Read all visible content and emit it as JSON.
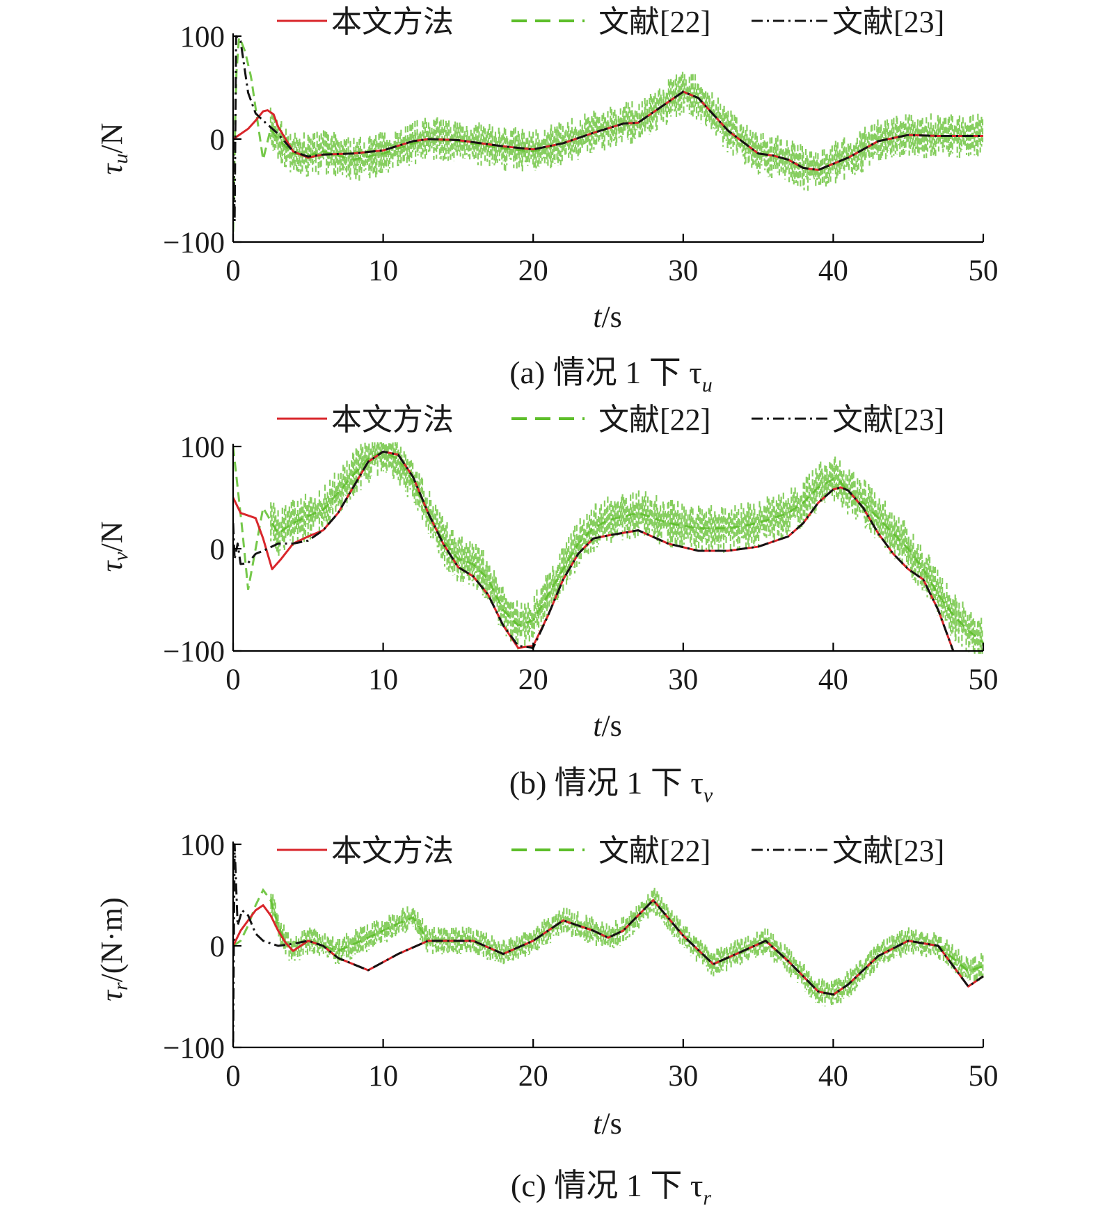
{
  "colors": {
    "proposed": "#d9262b",
    "ref22": "#5dbe2a",
    "ref23": "#141414",
    "axis": "#000000"
  },
  "chart_data": [
    {
      "type": "line",
      "title": "(a) 情况 1 下 τu",
      "caption_text": "(a) 情况 1 下 τ",
      "caption_sub": "u",
      "xlabel_var": "t",
      "xlabel_unit": "/s",
      "ylabel_var": "τ",
      "ylabel_sub": "u",
      "ylabel_unit": "/N",
      "xlim": [
        0,
        50
      ],
      "ylim": [
        -100,
        100
      ],
      "xticks": [
        0,
        10,
        20,
        30,
        40,
        50
      ],
      "yticks": [
        -100,
        0,
        100
      ],
      "xtick_labels": [
        "0",
        "10",
        "20",
        "30",
        "40",
        "50"
      ],
      "ytick_labels": [
        "−100",
        "0",
        "100"
      ],
      "legend": [
        "本文方法",
        "文献[22]",
        "文献[23]"
      ],
      "series": [
        {
          "name": "本文方法",
          "x": [
            0,
            0.5,
            1,
            1.5,
            2,
            2.3,
            2.7,
            3,
            4,
            5,
            6,
            8,
            10,
            12,
            13,
            15,
            18,
            20,
            22,
            24,
            26,
            27,
            28,
            30,
            31,
            33,
            35,
            36,
            37,
            38,
            39,
            41,
            43,
            45,
            47,
            50
          ],
          "y": [
            0,
            5,
            10,
            18,
            27,
            28,
            24,
            12,
            -12,
            -18,
            -15,
            -14,
            -11,
            -2,
            0,
            -1,
            -7,
            -10,
            -4,
            6,
            15,
            16,
            26,
            46,
            40,
            8,
            -14,
            -16,
            -20,
            -28,
            -30,
            -18,
            -2,
            4,
            3,
            3
          ]
        },
        {
          "name": "文献[22]",
          "x": [
            0,
            0.2,
            0.4,
            0.8,
            1.2,
            1.6,
            2,
            2.5,
            3,
            4,
            5,
            6,
            8,
            10,
            12,
            13,
            15,
            18,
            20,
            22,
            24,
            26,
            27,
            28,
            30,
            31,
            33,
            35,
            36,
            37,
            38,
            39,
            41,
            43,
            45,
            47,
            50
          ],
          "y": [
            -90,
            60,
            100,
            85,
            60,
            20,
            -20,
            10,
            0,
            -14,
            -16,
            -12,
            -20,
            -14,
            -4,
            0,
            -2,
            -9,
            -12,
            -4,
            6,
            15,
            16,
            26,
            46,
            40,
            8,
            -14,
            -16,
            -20,
            -28,
            -30,
            -18,
            -2,
            4,
            3,
            3
          ],
          "noise_amplitude": 22
        },
        {
          "name": "文献[23]",
          "x": [
            0,
            0.1,
            0.2,
            0.5,
            1,
            1.5,
            2,
            3,
            4,
            5,
            6,
            8,
            10,
            12,
            13,
            15,
            18,
            20,
            22,
            24,
            26,
            27,
            28,
            30,
            31,
            33,
            35,
            36,
            37,
            38,
            39,
            41,
            43,
            45,
            47,
            50
          ],
          "y": [
            0,
            -80,
            100,
            95,
            45,
            25,
            18,
            5,
            -12,
            -17,
            -15,
            -14,
            -11,
            -2,
            0,
            -1,
            -7,
            -10,
            -4,
            6,
            15,
            16,
            26,
            46,
            40,
            8,
            -14,
            -16,
            -20,
            -28,
            -30,
            -18,
            -2,
            4,
            3,
            3
          ]
        }
      ]
    },
    {
      "type": "line",
      "title": "(b) 情况 1 下 τv",
      "caption_text": "(b) 情况 1 下 τ",
      "caption_sub": "v",
      "xlabel_var": "t",
      "xlabel_unit": "/s",
      "ylabel_var": "τ",
      "ylabel_sub": "v",
      "ylabel_unit": "/N",
      "xlim": [
        0,
        50
      ],
      "ylim": [
        -100,
        100
      ],
      "xticks": [
        0,
        10,
        20,
        30,
        40,
        50
      ],
      "yticks": [
        -100,
        0,
        100
      ],
      "xtick_labels": [
        "0",
        "10",
        "20",
        "30",
        "40",
        "50"
      ],
      "ytick_labels": [
        "−100",
        "0",
        "100"
      ],
      "legend": [
        "本文方法",
        "文献[22]",
        "文献[23]"
      ],
      "series": [
        {
          "name": "本文方法",
          "x": [
            0,
            0.5,
            1.5,
            2,
            2.6,
            3.2,
            4,
            5,
            6,
            7,
            8,
            9,
            10,
            11,
            12,
            13,
            14,
            15,
            16,
            17,
            18,
            19,
            20,
            21,
            22,
            23,
            24,
            25,
            27,
            29,
            31,
            33,
            35,
            37,
            38,
            39,
            40,
            40.5,
            41,
            42,
            43,
            44,
            45,
            46,
            47,
            48
          ],
          "y": [
            50,
            35,
            30,
            10,
            -20,
            -10,
            5,
            12,
            18,
            35,
            60,
            85,
            95,
            92,
            70,
            35,
            5,
            -18,
            -27,
            -45,
            -75,
            -97,
            -95,
            -65,
            -30,
            -5,
            10,
            13,
            18,
            5,
            -2,
            -2,
            2,
            12,
            25,
            45,
            58,
            60,
            57,
            40,
            15,
            -5,
            -20,
            -30,
            -60,
            -100
          ]
        },
        {
          "name": "文献[22]",
          "x": [
            0,
            0.3,
            0.6,
            1,
            1.5,
            2,
            3,
            4,
            5,
            6,
            7,
            8,
            9,
            10,
            11,
            12,
            13,
            14,
            15,
            16,
            17,
            18,
            19,
            20,
            21,
            22,
            23,
            24,
            25,
            27,
            29,
            31,
            33,
            35,
            37,
            38,
            39,
            40,
            40.5,
            41,
            42,
            43,
            44,
            45,
            46,
            47,
            48,
            49,
            50
          ],
          "y": [
            100,
            60,
            20,
            -40,
            0,
            40,
            15,
            25,
            32,
            38,
            55,
            72,
            88,
            95,
            88,
            65,
            35,
            8,
            -10,
            -15,
            -30,
            -60,
            -75,
            -70,
            -45,
            -20,
            5,
            20,
            28,
            35,
            25,
            20,
            20,
            25,
            35,
            45,
            60,
            68,
            65,
            55,
            45,
            30,
            15,
            0,
            -20,
            -45,
            -65,
            -80,
            -92
          ],
          "noise_amplitude": 24
        },
        {
          "name": "文献[23]",
          "x": [
            0,
            0.1,
            0.3,
            0.5,
            1,
            1.5,
            2,
            3,
            4,
            5,
            6,
            7,
            8,
            9,
            10,
            11,
            12,
            13,
            14,
            15,
            16,
            17,
            18,
            19,
            20,
            21,
            22,
            23,
            24,
            25,
            27,
            29,
            31,
            33,
            35,
            37,
            38,
            39,
            40,
            40.5,
            41,
            42,
            43,
            44,
            45,
            46,
            47,
            48
          ],
          "y": [
            25,
            -10,
            5,
            -15,
            -14,
            -5,
            -2,
            5,
            5,
            8,
            18,
            35,
            60,
            85,
            95,
            92,
            70,
            35,
            5,
            -18,
            -27,
            -45,
            -75,
            -95,
            -97,
            -65,
            -30,
            -5,
            10,
            13,
            18,
            5,
            -2,
            -2,
            2,
            12,
            25,
            45,
            58,
            60,
            57,
            40,
            15,
            -5,
            -20,
            -30,
            -60,
            -100
          ]
        }
      ]
    },
    {
      "type": "line",
      "title": "(c) 情况 1 下 τr",
      "caption_text": "(c) 情况 1 下 τ",
      "caption_sub": "r",
      "xlabel_var": "t",
      "xlabel_unit": "/s",
      "ylabel_var": "τ",
      "ylabel_sub": "r",
      "ylabel_unit": "/(N·m)",
      "xlim": [
        0,
        50
      ],
      "ylim": [
        -100,
        100
      ],
      "xticks": [
        0,
        10,
        20,
        30,
        40,
        50
      ],
      "yticks": [
        -100,
        0,
        100
      ],
      "xtick_labels": [
        "0",
        "10",
        "20",
        "30",
        "40",
        "50"
      ],
      "ytick_labels": [
        "−100",
        "0",
        "100"
      ],
      "legend": [
        "本文方法",
        "文献[22]",
        "文献[23]"
      ],
      "series": [
        {
          "name": "本文方法",
          "x": [
            0,
            0.5,
            1,
            1.5,
            2,
            2.5,
            3,
            3.5,
            4,
            5,
            6,
            7,
            9,
            11,
            13,
            15,
            16,
            18,
            20,
            22,
            24,
            25,
            26,
            28,
            30,
            32,
            34,
            35.5,
            37,
            39,
            40,
            41,
            43,
            45,
            47,
            49,
            50
          ],
          "y": [
            0,
            15,
            25,
            35,
            40,
            30,
            15,
            3,
            -5,
            5,
            0,
            -12,
            -24,
            -8,
            5,
            5,
            5,
            -8,
            5,
            25,
            15,
            8,
            15,
            45,
            10,
            -18,
            -5,
            5,
            -15,
            -45,
            -48,
            -38,
            -10,
            5,
            0,
            -40,
            -30
          ]
        },
        {
          "name": "文献[22]",
          "x": [
            0,
            0.5,
            1,
            1.5,
            2,
            2.5,
            3,
            3.5,
            4,
            5,
            6,
            7,
            9,
            11,
            12,
            13,
            15,
            16,
            18,
            20,
            22,
            24,
            25,
            26,
            28,
            30,
            32,
            34,
            35.5,
            37,
            39,
            40,
            41,
            43,
            45,
            47,
            49,
            50
          ],
          "y": [
            0,
            5,
            20,
            40,
            55,
            45,
            20,
            3,
            -5,
            5,
            0,
            -5,
            8,
            22,
            28,
            5,
            5,
            5,
            -8,
            5,
            25,
            15,
            8,
            15,
            45,
            10,
            -18,
            -5,
            5,
            -15,
            -45,
            -48,
            -38,
            -10,
            5,
            0,
            -25,
            -20
          ],
          "noise_amplitude": 14
        },
        {
          "name": "文献[23]",
          "x": [
            0,
            0.1,
            0.3,
            0.6,
            1,
            1.5,
            2,
            3,
            4,
            5,
            6,
            7,
            9,
            11,
            13,
            15,
            16,
            18,
            20,
            22,
            24,
            25,
            26,
            28,
            30,
            32,
            34,
            35.5,
            37,
            39,
            40,
            41,
            43,
            45,
            47,
            49,
            50
          ],
          "y": [
            -95,
            100,
            20,
            35,
            30,
            12,
            5,
            0,
            2,
            5,
            0,
            -12,
            -24,
            -8,
            5,
            5,
            5,
            -8,
            5,
            25,
            15,
            8,
            15,
            45,
            10,
            -18,
            -5,
            5,
            -15,
            -45,
            -48,
            -38,
            -10,
            5,
            0,
            -40,
            -30
          ]
        }
      ]
    }
  ]
}
